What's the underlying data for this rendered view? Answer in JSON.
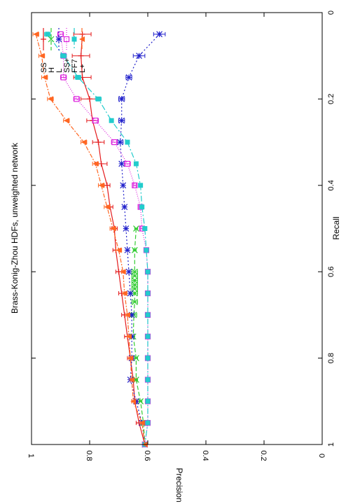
{
  "chart_data": {
    "type": "line",
    "title": "Brass-Konig-Zhou HDFs, unweighted network",
    "xlabel": "Recall",
    "ylabel": "Precision",
    "xlim": [
      0,
      1
    ],
    "ylim": [
      0,
      1
    ],
    "x_ticks": [
      "0",
      "0.2",
      "0.4",
      "0.6",
      "0.8",
      "1"
    ],
    "y_ticks": [
      "0",
      "0.2",
      "0.4",
      "0.6",
      "0.8",
      "1"
    ],
    "legend_position": "top-right",
    "grid": false,
    "series": [
      {
        "name": "SS",
        "color": "#e41a1c",
        "marker": "plus",
        "dash": "",
        "x": [
          0.05,
          0.1,
          0.15,
          0.2,
          0.25,
          0.3,
          0.35,
          0.4,
          0.45,
          0.5,
          0.55,
          0.6,
          0.65,
          0.7,
          0.75,
          0.8,
          0.85,
          0.9,
          0.95,
          1.0
        ],
        "y": [
          0.825,
          0.83,
          0.825,
          0.8,
          0.79,
          0.77,
          0.76,
          0.74,
          0.73,
          0.715,
          0.71,
          0.7,
          0.69,
          0.68,
          0.67,
          0.66,
          0.65,
          0.645,
          0.63,
          0.61
        ],
        "err": [
          0.03,
          0.03,
          0.03,
          0.03,
          0.02,
          0.02,
          0.02,
          0.01,
          0.01,
          0.01,
          0.01,
          0.01,
          0.01,
          0.01,
          0.01,
          0.01,
          0.01,
          0.01,
          0.01,
          0.0
        ]
      },
      {
        "name": "H",
        "color": "#33cc33",
        "marker": "x",
        "dash": "6,3",
        "x": [
          0.5,
          0.55,
          0.6,
          0.61,
          0.62,
          0.63,
          0.64,
          0.65,
          0.67,
          0.7,
          0.75,
          0.8,
          0.85,
          0.9,
          0.95,
          1.0
        ],
        "y": [
          0.64,
          0.645,
          0.645,
          0.645,
          0.645,
          0.645,
          0.645,
          0.645,
          0.645,
          0.648,
          0.65,
          0.64,
          0.64,
          0.625,
          0.615,
          0.61
        ],
        "err": [
          0.005,
          0.005,
          0.01,
          0.01,
          0.01,
          0.01,
          0.01,
          0.01,
          0.01,
          0.01,
          0.005,
          0.005,
          0.005,
          0.005,
          0.005,
          0.0
        ]
      },
      {
        "name": "L",
        "color": "#2222cc",
        "marker": "star",
        "dash": "2,3",
        "x": [
          0.05,
          0.1,
          0.15,
          0.2,
          0.25,
          0.3,
          0.35,
          0.4,
          0.45,
          0.5,
          0.55,
          0.6,
          0.65,
          0.7,
          0.75,
          0.8,
          0.85,
          0.9,
          0.95,
          1.0
        ],
        "y": [
          0.56,
          0.63,
          0.665,
          0.69,
          0.69,
          0.695,
          0.69,
          0.685,
          0.68,
          0.675,
          0.67,
          0.665,
          0.66,
          0.655,
          0.655,
          0.655,
          0.66,
          0.64,
          0.62,
          0.61
        ],
        "err": [
          0.02,
          0.02,
          0.01,
          0.01,
          0.01,
          0.01,
          0.0,
          0.0,
          0.0,
          0.0,
          0.0,
          0.0,
          0.0,
          0.0,
          0.0,
          0.0,
          0.0,
          0.0,
          0.0,
          0.0
        ]
      },
      {
        "name": "SS+",
        "color": "#dd22dd",
        "marker": "square",
        "dash": "1,2",
        "x": [
          0.05,
          0.1,
          0.15,
          0.2,
          0.25,
          0.3,
          0.35,
          0.4,
          0.45,
          0.5,
          0.55,
          0.6,
          0.65,
          0.7,
          0.75,
          0.8,
          0.85,
          0.9,
          0.95,
          1.0
        ],
        "y": [
          0.9,
          0.89,
          0.89,
          0.845,
          0.78,
          0.715,
          0.67,
          0.645,
          0.625,
          0.62,
          0.605,
          0.6,
          0.6,
          0.6,
          0.6,
          0.6,
          0.6,
          0.6,
          0.6,
          0.61
        ],
        "err": [
          0.01,
          0.01,
          0.01,
          0.01,
          0.01,
          0.01,
          0.01,
          0.005,
          0.005,
          0.005,
          0.005,
          0.005,
          0.005,
          0.005,
          0.005,
          0.005,
          0.005,
          0.005,
          0.005,
          0.0
        ]
      },
      {
        "name": "FF7",
        "color": "#22cccc",
        "marker": "fsquare",
        "dash": "8,3,2,3",
        "x": [
          0.05,
          0.1,
          0.15,
          0.2,
          0.25,
          0.3,
          0.35,
          0.4,
          0.45,
          0.5,
          0.55,
          0.6,
          0.65,
          0.7,
          0.75,
          0.8,
          0.85,
          0.9,
          0.95,
          1.0
        ],
        "y": [
          0.945,
          0.89,
          0.84,
          0.77,
          0.725,
          0.67,
          0.64,
          0.625,
          0.62,
          0.61,
          0.605,
          0.6,
          0.6,
          0.6,
          0.6,
          0.6,
          0.6,
          0.6,
          0.6,
          0.61
        ],
        "err": [
          0.01,
          0.01,
          0.01,
          0.01,
          0.005,
          0.005,
          0.005,
          0.005,
          0.005,
          0.005,
          0.005,
          0.005,
          0.005,
          0.005,
          0.005,
          0.005,
          0.005,
          0.005,
          0.005,
          0.0
        ]
      },
      {
        "name": "L+",
        "color": "#ff6622",
        "marker": "triangle",
        "dash": "6,2,2,2",
        "x": [
          0.05,
          0.1,
          0.15,
          0.2,
          0.25,
          0.3,
          0.35,
          0.4,
          0.45,
          0.5,
          0.55,
          0.6,
          0.65,
          0.7,
          0.75,
          0.8,
          0.85,
          0.9,
          0.95,
          1.0
        ],
        "y": [
          0.985,
          0.965,
          0.955,
          0.935,
          0.88,
          0.82,
          0.78,
          0.76,
          0.74,
          0.72,
          0.7,
          0.685,
          0.68,
          0.67,
          0.665,
          0.66,
          0.655,
          0.65,
          0.62,
          0.61
        ],
        "err": [
          0.01,
          0.01,
          0.01,
          0.01,
          0.01,
          0.01,
          0.01,
          0.01,
          0.01,
          0.01,
          0.01,
          0.005,
          0.005,
          0.005,
          0.005,
          0.005,
          0.005,
          0.005,
          0.005,
          0.0
        ]
      }
    ]
  }
}
